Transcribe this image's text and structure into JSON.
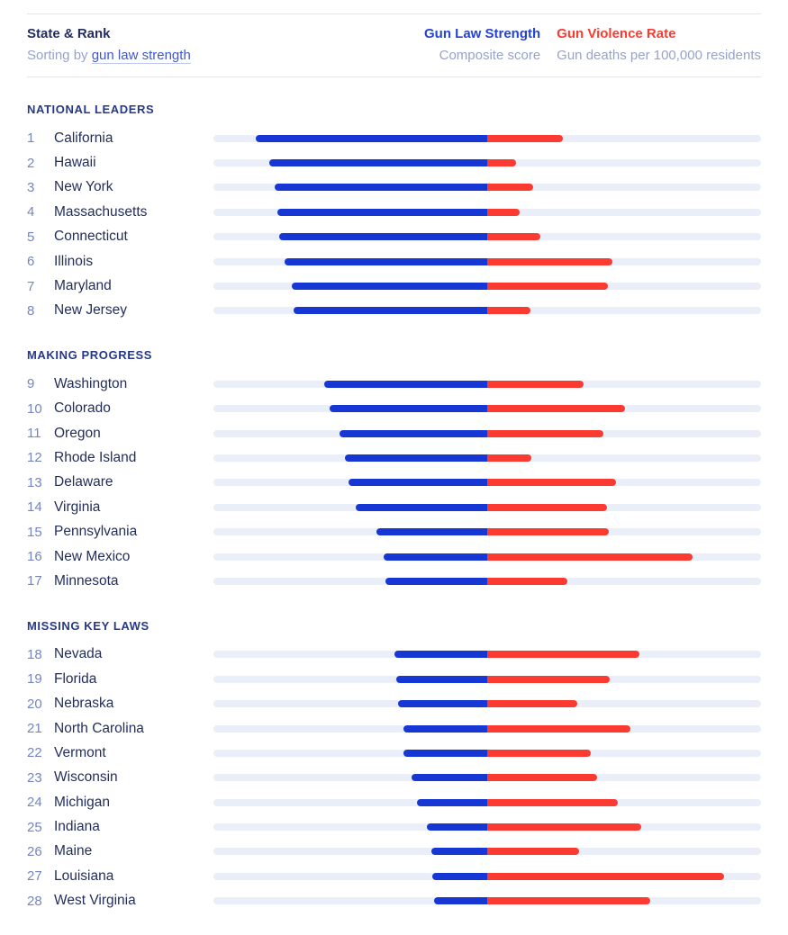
{
  "header": {
    "title": "State & Rank",
    "sorting_prefix": "Sorting by ",
    "sorting_link": "gun law strength",
    "law_title": "Gun Law Strength",
    "law_subtitle": "Composite score",
    "violence_title": "Gun Violence Rate",
    "violence_subtitle": "Gun deaths per 100,000 residents"
  },
  "colors": {
    "law_bar": "#1737d4",
    "violence_bar": "#fb3a31",
    "track": "#e9eef9",
    "law_header": "#2443d2",
    "violence_header": "#fb3a30",
    "navy_text": "#232e5c",
    "muted_text": "#96a3cb"
  },
  "chart_data": {
    "type": "bar",
    "variant": "diverging-horizontal",
    "center_line": "shared center: law strength extends left, violence rate extends right",
    "series": [
      {
        "name": "Gun Law Strength",
        "unit": "composite score",
        "color": "#1737d4",
        "domain": [
          0,
          104.8
        ]
      },
      {
        "name": "Gun Violence Rate",
        "unit": "gun deaths per 100,000 residents",
        "color": "#fb3a31",
        "domain": [
          0,
          32.3
        ]
      }
    ],
    "sections": [
      {
        "label": "NATIONAL LEADERS",
        "states": [
          {
            "rank": 1,
            "state": "California",
            "law_strength": 88.5,
            "violence_rate": 8.9
          },
          {
            "rank": 2,
            "state": "Hawaii",
            "law_strength": 83.5,
            "violence_rate": 3.4
          },
          {
            "rank": 3,
            "state": "New York",
            "law_strength": 81.5,
            "violence_rate": 5.4
          },
          {
            "rank": 4,
            "state": "Massachusetts",
            "law_strength": 80.5,
            "violence_rate": 3.8
          },
          {
            "rank": 5,
            "state": "Connecticut",
            "law_strength": 79.5,
            "violence_rate": 6.3
          },
          {
            "rank": 6,
            "state": "Illinois",
            "law_strength": 77.5,
            "violence_rate": 14.8
          },
          {
            "rank": 7,
            "state": "Maryland",
            "law_strength": 75.0,
            "violence_rate": 14.2
          },
          {
            "rank": 8,
            "state": "New Jersey",
            "law_strength": 74.0,
            "violence_rate": 5.1
          }
        ]
      },
      {
        "label": "MAKING PROGRESS",
        "states": [
          {
            "rank": 9,
            "state": "Washington",
            "law_strength": 62.5,
            "violence_rate": 11.4
          },
          {
            "rank": 10,
            "state": "Colorado",
            "law_strength": 60.5,
            "violence_rate": 16.2
          },
          {
            "rank": 11,
            "state": "Oregon",
            "law_strength": 56.5,
            "violence_rate": 13.7
          },
          {
            "rank": 12,
            "state": "Rhode Island",
            "law_strength": 54.5,
            "violence_rate": 5.2
          },
          {
            "rank": 13,
            "state": "Delaware",
            "law_strength": 53.0,
            "violence_rate": 15.2
          },
          {
            "rank": 14,
            "state": "Virginia",
            "law_strength": 50.5,
            "violence_rate": 14.1
          },
          {
            "rank": 15,
            "state": "Pennsylvania",
            "law_strength": 42.5,
            "violence_rate": 14.3
          },
          {
            "rank": 16,
            "state": "New Mexico",
            "law_strength": 39.5,
            "violence_rate": 24.2
          },
          {
            "rank": 17,
            "state": "Minnesota",
            "law_strength": 39.0,
            "violence_rate": 9.4
          }
        ]
      },
      {
        "label": "MISSING KEY LAWS",
        "states": [
          {
            "rank": 18,
            "state": "Nevada",
            "law_strength": 35.5,
            "violence_rate": 17.9
          },
          {
            "rank": 19,
            "state": "Florida",
            "law_strength": 35.0,
            "violence_rate": 14.4
          },
          {
            "rank": 20,
            "state": "Nebraska",
            "law_strength": 34.0,
            "violence_rate": 10.6
          },
          {
            "rank": 21,
            "state": "North Carolina",
            "law_strength": 32.0,
            "violence_rate": 16.9
          },
          {
            "rank": 22,
            "state": "Vermont",
            "law_strength": 32.0,
            "violence_rate": 12.2
          },
          {
            "rank": 23,
            "state": "Wisconsin",
            "law_strength": 29.0,
            "violence_rate": 12.9
          },
          {
            "rank": 24,
            "state": "Michigan",
            "law_strength": 27.0,
            "violence_rate": 15.4
          },
          {
            "rank": 25,
            "state": "Indiana",
            "law_strength": 23.0,
            "violence_rate": 18.1
          },
          {
            "rank": 26,
            "state": "Maine",
            "law_strength": 21.5,
            "violence_rate": 10.8
          },
          {
            "rank": 27,
            "state": "Louisiana",
            "law_strength": 21.0,
            "violence_rate": 27.9
          },
          {
            "rank": 28,
            "state": "West Virginia",
            "law_strength": 20.5,
            "violence_rate": 19.2
          }
        ]
      }
    ],
    "layout_hints": {
      "legend_position": "top header row",
      "grid": false,
      "track_background_full_width": true
    }
  }
}
